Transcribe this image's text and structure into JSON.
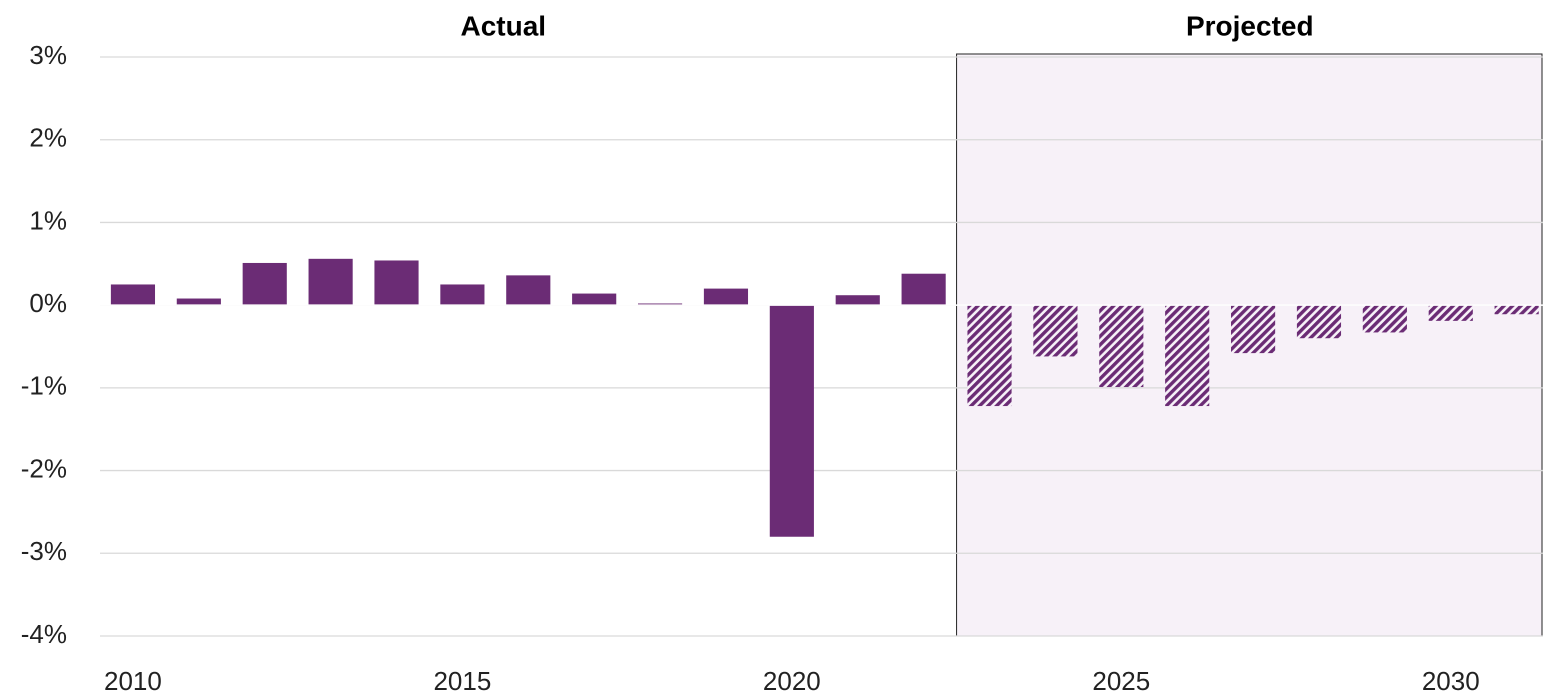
{
  "chart_data": {
    "type": "bar",
    "x": [
      2010,
      2011,
      2012,
      2013,
      2014,
      2015,
      2016,
      2017,
      2018,
      2019,
      2020,
      2021,
      2022,
      2023,
      2024,
      2025,
      2026,
      2027,
      2028,
      2029,
      2030,
      2031
    ],
    "series": [
      {
        "name": "Actual",
        "color": "#6b2c75",
        "values": [
          0.25,
          0.08,
          0.51,
          0.56,
          0.54,
          0.25,
          0.36,
          0.14,
          0.02,
          0.2,
          -2.8,
          0.12,
          0.38,
          null,
          null,
          null,
          null,
          null,
          null,
          null,
          null,
          null
        ]
      },
      {
        "name": "Projected",
        "color": "#6b2c75",
        "pattern": "hatch",
        "values": [
          null,
          null,
          null,
          null,
          null,
          null,
          null,
          null,
          null,
          null,
          null,
          null,
          null,
          -1.22,
          -0.62,
          -0.99,
          -1.22,
          -0.58,
          -0.4,
          -0.33,
          -0.19,
          -0.11
        ]
      }
    ],
    "xlim": [
      2009.5,
      2031.4
    ],
    "xticks": [
      2010,
      2015,
      2020,
      2025,
      2030
    ],
    "ylim": [
      -4,
      3
    ],
    "yticks": [
      {
        "value": -4,
        "label": "-4%"
      },
      {
        "value": -3,
        "label": "-3%"
      },
      {
        "value": -2,
        "label": "-2%"
      },
      {
        "value": -1,
        "label": "-1%"
      },
      {
        "value": 0,
        "label": "0%"
      },
      {
        "value": 1,
        "label": "1%"
      },
      {
        "value": 2,
        "label": "2%"
      },
      {
        "value": 3,
        "label": "3%"
      }
    ],
    "grid": true
  }
}
